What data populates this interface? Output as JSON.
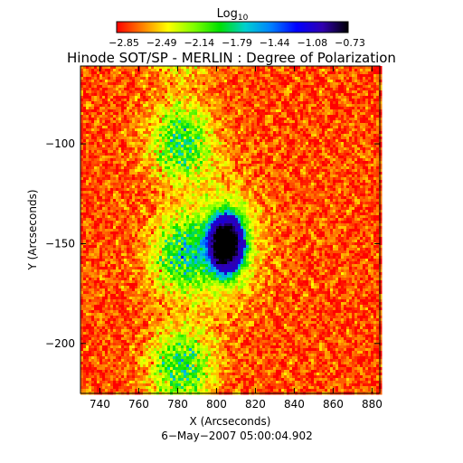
{
  "chart_data": {
    "type": "heatmap",
    "title": "Hinode SOT/SP - MERLIN : Degree of Polarization",
    "xlabel": "X (Arcseconds)",
    "ylabel": "Y (Arcseconds)",
    "footer": "6-May-2007 05:00:04.902",
    "colorbar": {
      "label_base": "Log",
      "label_sub": "10",
      "tick_labels": [
        "-2.85",
        "-2.49",
        "-2.14",
        "-1.79",
        "-1.44",
        "-1.08",
        "-0.73"
      ],
      "range": [
        -2.85,
        -0.73
      ],
      "colormap": [
        "#ff0000",
        "#ff8000",
        "#ffff00",
        "#80ff00",
        "#00e000",
        "#00d0d0",
        "#0080ff",
        "#0000ff",
        "#3000b0",
        "#000000"
      ]
    },
    "xlim": [
      730,
      884
    ],
    "ylim": [
      -225,
      -61
    ],
    "xticks": [
      740,
      760,
      780,
      800,
      820,
      840,
      860,
      880
    ],
    "yticks": [
      -100,
      -150,
      -200
    ],
    "features": {
      "sunspot_center": [
        805,
        -150
      ],
      "umbra_value": -0.85,
      "background_value": -2.75
    }
  }
}
